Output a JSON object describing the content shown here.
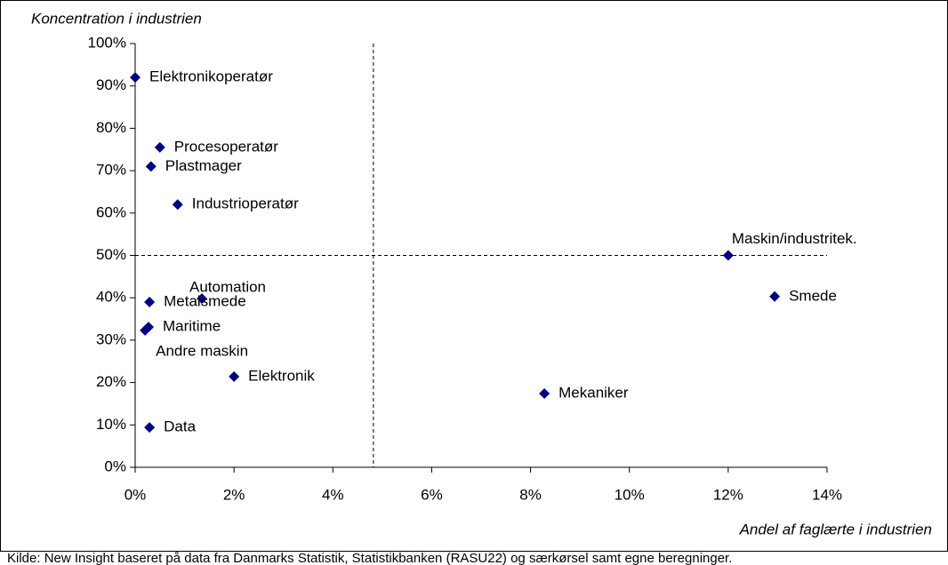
{
  "chart_data": {
    "type": "scatter",
    "y_label": "Koncentration i industrien",
    "x_label": "Andel af faglærte i industrien",
    "source": "Kilde: New Insight baseret på data fra Danmarks Statistik, Statistikbanken (RASU22) og særkørsel samt egne beregninger.",
    "color": "#000080",
    "xlim": [
      0,
      14
    ],
    "ylim": [
      0,
      100
    ],
    "xticks": [
      {
        "value": 0,
        "label": "0%"
      },
      {
        "value": 2,
        "label": "2%"
      },
      {
        "value": 4,
        "label": "4%"
      },
      {
        "value": 6,
        "label": "6%"
      },
      {
        "value": 8,
        "label": "8%"
      },
      {
        "value": 10,
        "label": "10%"
      },
      {
        "value": 12,
        "label": "12%"
      },
      {
        "value": 14,
        "label": "14%"
      }
    ],
    "yticks": [
      {
        "value": 0,
        "label": "0%"
      },
      {
        "value": 10,
        "label": "10%"
      },
      {
        "value": 20,
        "label": "20%"
      },
      {
        "value": 30,
        "label": "30%"
      },
      {
        "value": 40,
        "label": "40%"
      },
      {
        "value": 50,
        "label": "50%"
      },
      {
        "value": 60,
        "label": "60%"
      },
      {
        "value": 70,
        "label": "70%"
      },
      {
        "value": 80,
        "label": "80%"
      },
      {
        "value": 90,
        "label": "90%"
      },
      {
        "value": 100,
        "label": "100%"
      }
    ],
    "labels": [
      "Elektronikoperatør",
      "Procesoperatør",
      "Plastmager",
      "Industrioperatør",
      "Maskin/industritek.",
      "Smede",
      "Automation",
      "Metalsmede",
      "Maritime",
      "Andre maskin",
      "Elektronik",
      "Mekaniker",
      "Data"
    ],
    "x": [
      0,
      0.5,
      0.32,
      0.86,
      12,
      12.94,
      1.35,
      0.29,
      0.27,
      0.2,
      2.0,
      8.28,
      0.29
    ],
    "values": [
      92,
      75.5,
      71,
      62,
      50,
      40.3,
      39.8,
      39,
      33.1,
      32.3,
      21.4,
      17.4,
      9.4
    ],
    "reference_x": 4.82,
    "reference_y": 50
  }
}
